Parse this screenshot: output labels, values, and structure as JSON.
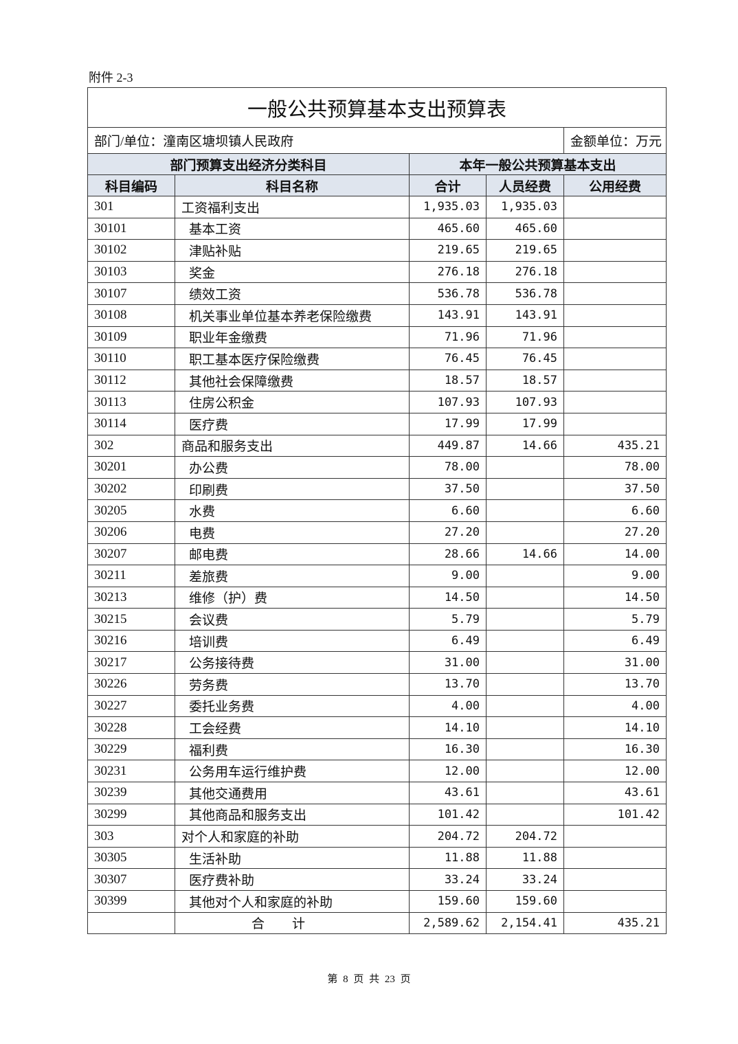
{
  "attachment_label": "附件 2-3",
  "title": "一般公共预算基本支出预算表",
  "department": "部门/单位：潼南区塘坝镇人民政府",
  "unit": "金额单位：万元",
  "group_headers": {
    "left": "部门预算支出经济分类科目",
    "right": "本年一般公共预算基本支出"
  },
  "columns": [
    "科目编码",
    "科目名称",
    "合计",
    "人员经费",
    "公用经费"
  ],
  "rows": [
    {
      "code": "301",
      "name": "工资福利支出",
      "level": 1,
      "total": "1,935.03",
      "personnel": "1,935.03",
      "public": ""
    },
    {
      "code": "30101",
      "name": "基本工资",
      "level": 2,
      "total": "465.60",
      "personnel": "465.60",
      "public": ""
    },
    {
      "code": "30102",
      "name": "津贴补贴",
      "level": 2,
      "total": "219.65",
      "personnel": "219.65",
      "public": ""
    },
    {
      "code": "30103",
      "name": "奖金",
      "level": 2,
      "total": "276.18",
      "personnel": "276.18",
      "public": ""
    },
    {
      "code": "30107",
      "name": "绩效工资",
      "level": 2,
      "total": "536.78",
      "personnel": "536.78",
      "public": ""
    },
    {
      "code": "30108",
      "name": "机关事业单位基本养老保险缴费",
      "level": 2,
      "total": "143.91",
      "personnel": "143.91",
      "public": ""
    },
    {
      "code": "30109",
      "name": "职业年金缴费",
      "level": 2,
      "total": "71.96",
      "personnel": "71.96",
      "public": ""
    },
    {
      "code": "30110",
      "name": "职工基本医疗保险缴费",
      "level": 2,
      "total": "76.45",
      "personnel": "76.45",
      "public": ""
    },
    {
      "code": "30112",
      "name": "其他社会保障缴费",
      "level": 2,
      "total": "18.57",
      "personnel": "18.57",
      "public": ""
    },
    {
      "code": "30113",
      "name": "住房公积金",
      "level": 2,
      "total": "107.93",
      "personnel": "107.93",
      "public": ""
    },
    {
      "code": "30114",
      "name": "医疗费",
      "level": 2,
      "total": "17.99",
      "personnel": "17.99",
      "public": ""
    },
    {
      "code": "302",
      "name": "商品和服务支出",
      "level": 1,
      "total": "449.87",
      "personnel": "14.66",
      "public": "435.21"
    },
    {
      "code": "30201",
      "name": "办公费",
      "level": 2,
      "total": "78.00",
      "personnel": "",
      "public": "78.00"
    },
    {
      "code": "30202",
      "name": "印刷费",
      "level": 2,
      "total": "37.50",
      "personnel": "",
      "public": "37.50"
    },
    {
      "code": "30205",
      "name": "水费",
      "level": 2,
      "total": "6.60",
      "personnel": "",
      "public": "6.60"
    },
    {
      "code": "30206",
      "name": "电费",
      "level": 2,
      "total": "27.20",
      "personnel": "",
      "public": "27.20"
    },
    {
      "code": "30207",
      "name": "邮电费",
      "level": 2,
      "total": "28.66",
      "personnel": "14.66",
      "public": "14.00"
    },
    {
      "code": "30211",
      "name": "差旅费",
      "level": 2,
      "total": "9.00",
      "personnel": "",
      "public": "9.00"
    },
    {
      "code": "30213",
      "name": "维修（护）费",
      "level": 2,
      "total": "14.50",
      "personnel": "",
      "public": "14.50"
    },
    {
      "code": "30215",
      "name": "会议费",
      "level": 2,
      "total": "5.79",
      "personnel": "",
      "public": "5.79"
    },
    {
      "code": "30216",
      "name": "培训费",
      "level": 2,
      "total": "6.49",
      "personnel": "",
      "public": "6.49"
    },
    {
      "code": "30217",
      "name": "公务接待费",
      "level": 2,
      "total": "31.00",
      "personnel": "",
      "public": "31.00"
    },
    {
      "code": "30226",
      "name": "劳务费",
      "level": 2,
      "total": "13.70",
      "personnel": "",
      "public": "13.70"
    },
    {
      "code": "30227",
      "name": "委托业务费",
      "level": 2,
      "total": "4.00",
      "personnel": "",
      "public": "4.00"
    },
    {
      "code": "30228",
      "name": "工会经费",
      "level": 2,
      "total": "14.10",
      "personnel": "",
      "public": "14.10"
    },
    {
      "code": "30229",
      "name": "福利费",
      "level": 2,
      "total": "16.30",
      "personnel": "",
      "public": "16.30"
    },
    {
      "code": "30231",
      "name": "公务用车运行维护费",
      "level": 2,
      "total": "12.00",
      "personnel": "",
      "public": "12.00"
    },
    {
      "code": "30239",
      "name": "其他交通费用",
      "level": 2,
      "total": "43.61",
      "personnel": "",
      "public": "43.61"
    },
    {
      "code": "30299",
      "name": "其他商品和服务支出",
      "level": 2,
      "total": "101.42",
      "personnel": "",
      "public": "101.42"
    },
    {
      "code": "303",
      "name": "对个人和家庭的补助",
      "level": 1,
      "total": "204.72",
      "personnel": "204.72",
      "public": ""
    },
    {
      "code": "30305",
      "name": "生活补助",
      "level": 2,
      "total": "11.88",
      "personnel": "11.88",
      "public": ""
    },
    {
      "code": "30307",
      "name": "医疗费补助",
      "level": 2,
      "total": "33.24",
      "personnel": "33.24",
      "public": ""
    },
    {
      "code": "30399",
      "name": "其他对个人和家庭的补助",
      "level": 2,
      "total": "159.60",
      "personnel": "159.60",
      "public": ""
    }
  ],
  "total_row": {
    "label": "合计",
    "total": "2,589.62",
    "personnel": "2,154.41",
    "public": "435.21"
  },
  "footer": "第 8 页 共 23 页"
}
